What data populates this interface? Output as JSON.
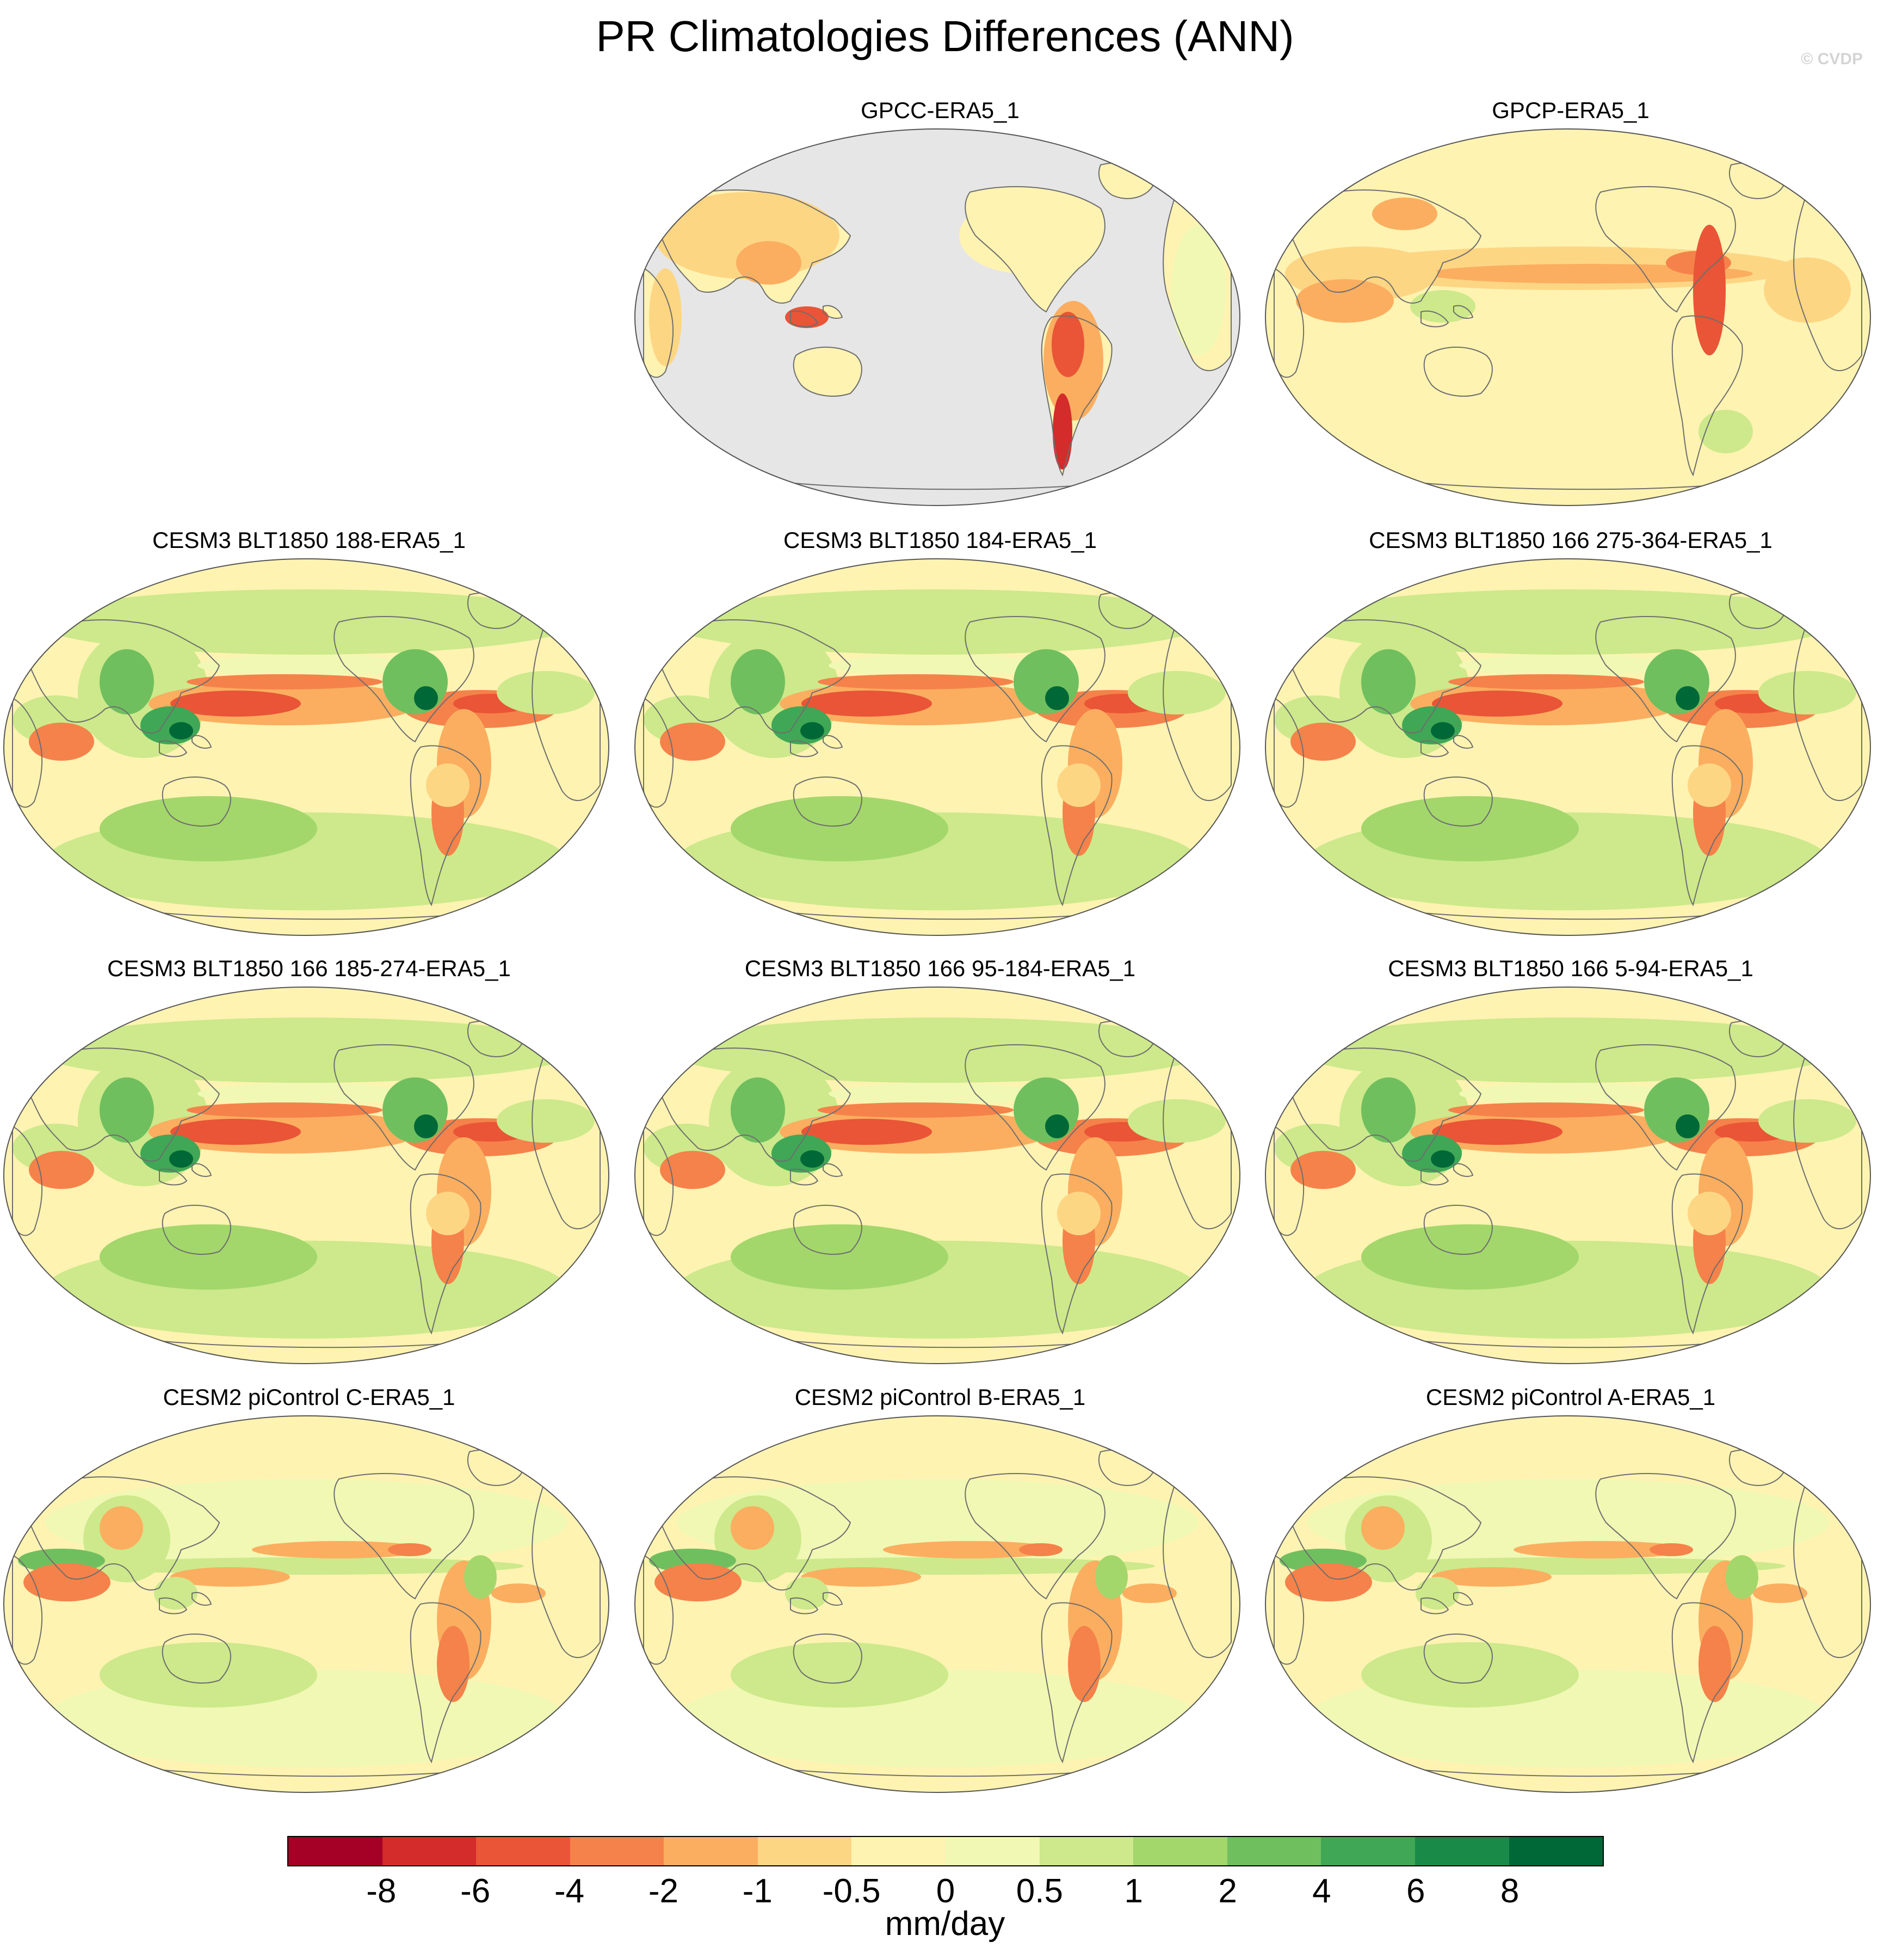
{
  "title": "PR Climatologies Differences (ANN)",
  "watermark": "© CVDP",
  "panels": [
    {
      "label": "GPCC-ERA5_1",
      "style": "land_only"
    },
    {
      "label": "GPCP-ERA5_1",
      "style": "obs"
    },
    {
      "label": "CESM3 BLT1850 188-ERA5_1",
      "style": "cesm3"
    },
    {
      "label": "CESM3 BLT1850 184-ERA5_1",
      "style": "cesm3"
    },
    {
      "label": "CESM3 BLT1850 166 275-364-ERA5_1",
      "style": "cesm3"
    },
    {
      "label": "CESM3 BLT1850 166 185-274-ERA5_1",
      "style": "cesm3"
    },
    {
      "label": "CESM3 BLT1850 166 95-184-ERA5_1",
      "style": "cesm3"
    },
    {
      "label": "CESM3 BLT1850 166 5-94-ERA5_1",
      "style": "cesm3"
    },
    {
      "label": "CESM2 piControl C-ERA5_1",
      "style": "cesm2"
    },
    {
      "label": "CESM2 piControl B-ERA5_1",
      "style": "cesm2"
    },
    {
      "label": "CESM2 piControl A-ERA5_1",
      "style": "cesm2"
    }
  ],
  "colorbar": {
    "colors": [
      "#a50026",
      "#d42b2b",
      "#e95536",
      "#f5824a",
      "#fbae60",
      "#fdd684",
      "#fff3b2",
      "#f0f8b4",
      "#cde98b",
      "#a3d76b",
      "#70bf5f",
      "#40a756",
      "#1a8a48",
      "#006837"
    ],
    "tick_labels": [
      "-8",
      "-6",
      "-4",
      "-2",
      "-1",
      "-0.5",
      "0",
      "0.5",
      "1",
      "2",
      "4",
      "6",
      "8"
    ],
    "units": "mm/day"
  },
  "map_colors": {
    "ocean_missing": "#e6e6e6",
    "background": "#fff3b2",
    "coast": "#6e6e6e"
  }
}
